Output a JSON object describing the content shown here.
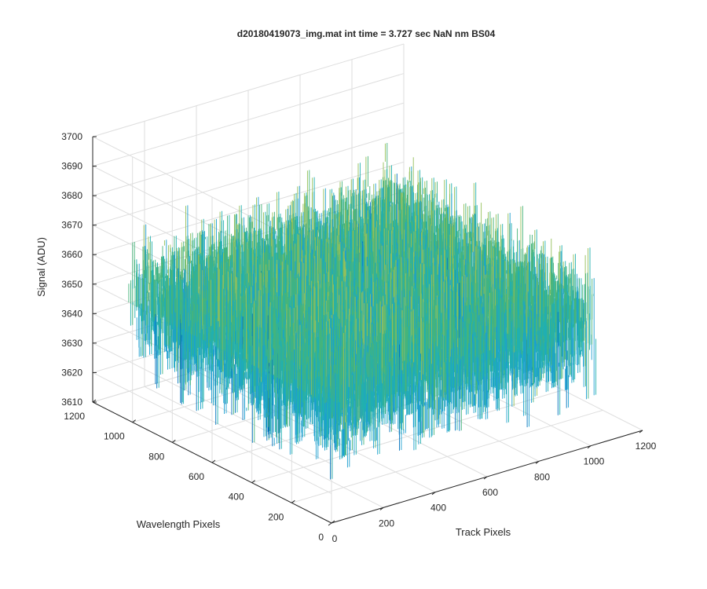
{
  "chart_data": {
    "type": "surface",
    "title": "d20180419073_img.mat int time = 3.727 sec  NaN nm BS04",
    "xlabel": "Track Pixels",
    "ylabel": "Wavelength Pixels",
    "zlabel": "Signal (ADU)",
    "xlim": [
      0,
      1200
    ],
    "ylim": [
      0,
      1200
    ],
    "zlim": [
      3610,
      3700
    ],
    "x_ticks": [
      0,
      200,
      400,
      600,
      800,
      1000,
      1200
    ],
    "y_ticks": [
      0,
      200,
      400,
      600,
      800,
      1000,
      1200
    ],
    "z_ticks": [
      3610,
      3620,
      3630,
      3640,
      3650,
      3660,
      3670,
      3680,
      3690,
      3700
    ],
    "data_extent": {
      "x": [
        0,
        1024
      ],
      "y": [
        0,
        1024
      ]
    },
    "signal_mean": 3650,
    "signal_range": [
      3610,
      3700
    ],
    "grid": true,
    "colormap": [
      "#0072BD",
      "#1c9fd0",
      "#21b0b0",
      "#46b47a",
      "#95c05a",
      "#dcba3a"
    ]
  }
}
